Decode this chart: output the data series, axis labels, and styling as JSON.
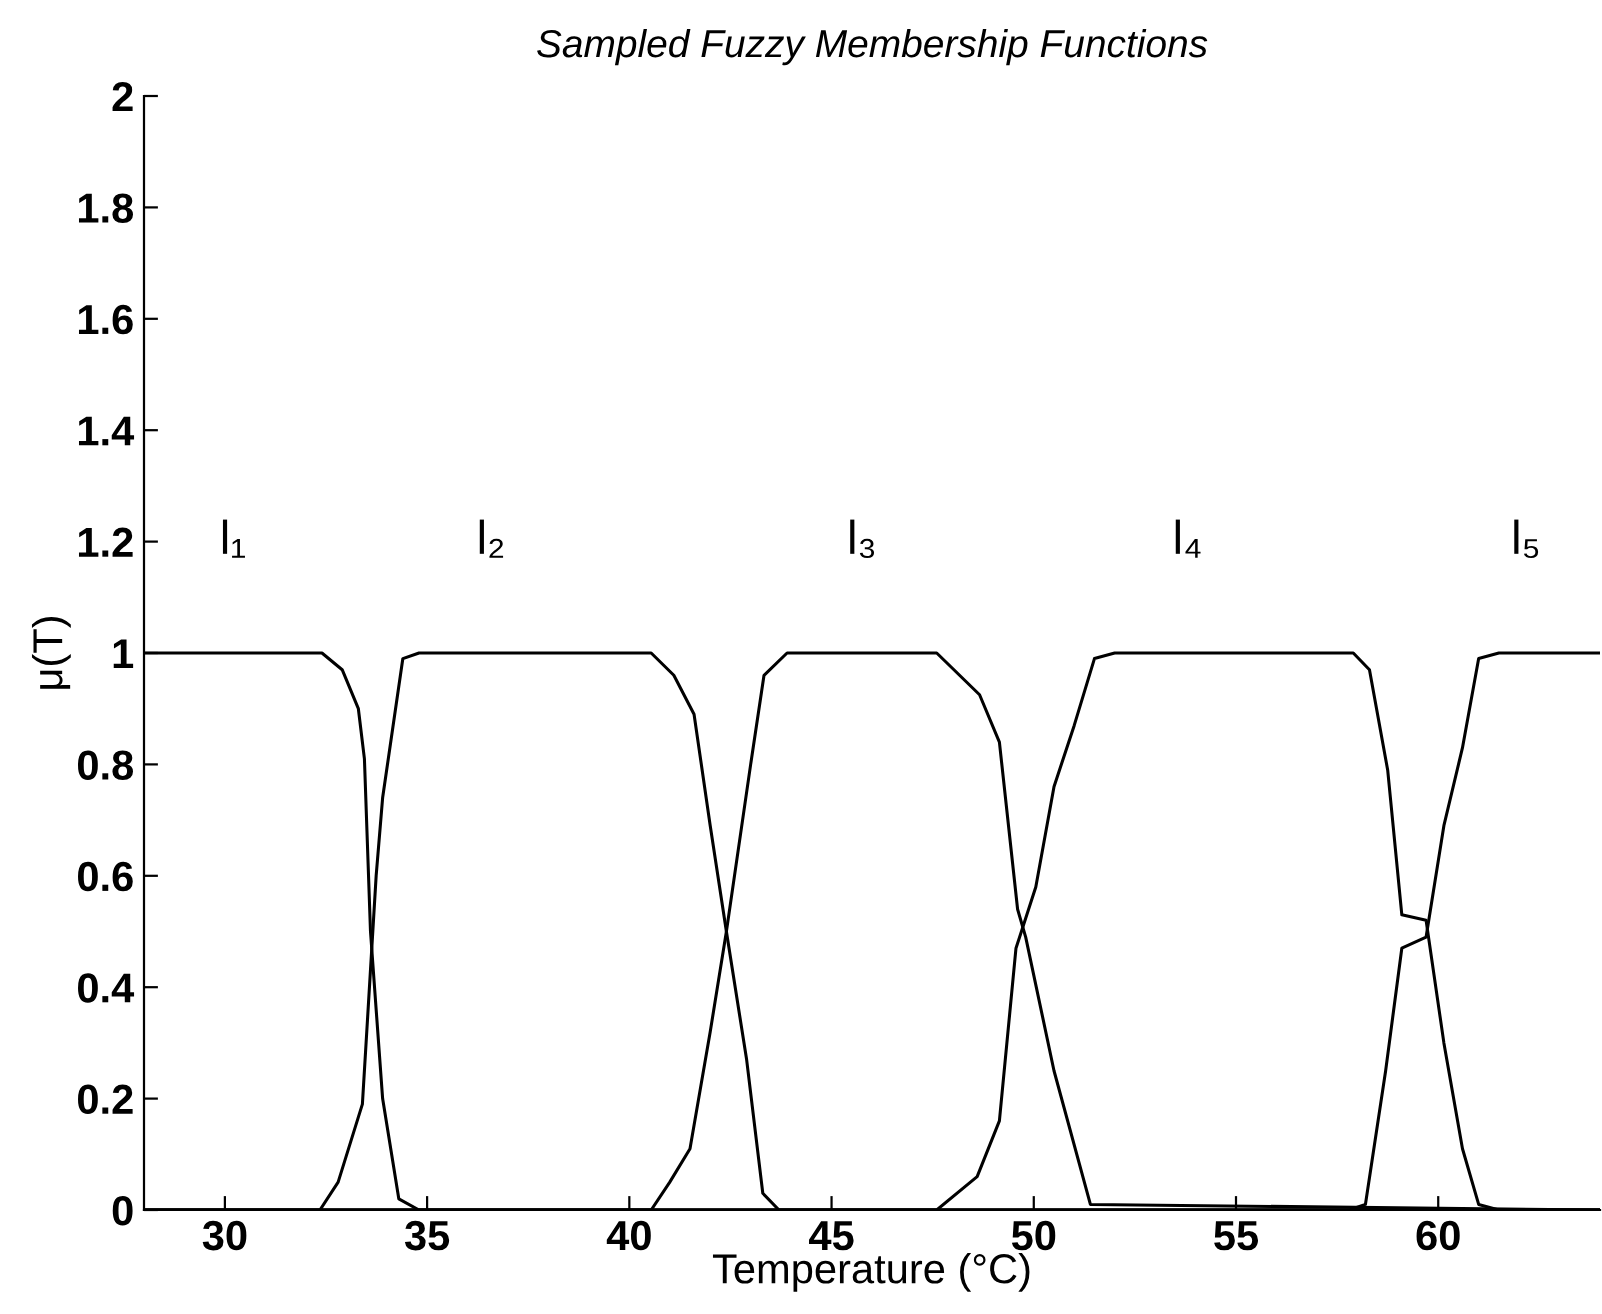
{
  "chart_data": {
    "type": "line",
    "title": "Sampled Fuzzy Membership Functions",
    "xlabel": "Temperature (°C)",
    "ylabel": "μ(T)",
    "xlim": [
      28,
      64
    ],
    "ylim": [
      0,
      2
    ],
    "xticks": [
      30,
      35,
      40,
      45,
      50,
      55,
      60
    ],
    "yticks": [
      0,
      0.2,
      0.4,
      0.6,
      0.8,
      1,
      1.2,
      1.4,
      1.6,
      1.8,
      2
    ],
    "grid": false,
    "marker": "none",
    "line_style": "solid",
    "series": [
      {
        "name": "l₁",
        "color": "#000000",
        "x": [
          28,
          32.4,
          32.9,
          33.3,
          33.45,
          33.6,
          33.9,
          34.3,
          34.8,
          64
        ],
        "values": [
          1,
          1,
          0.97,
          0.9,
          0.81,
          0.5,
          0.2,
          0.02,
          0,
          0
        ]
      },
      {
        "name": "l₂",
        "color": "#000000",
        "x": [
          28,
          32.35,
          32.8,
          33.4,
          33.74,
          33.9,
          34.4,
          34.8,
          40.54,
          41.1,
          41.6,
          42.0,
          42.4,
          42.9,
          43.3,
          43.7,
          64
        ],
        "values": [
          0,
          0,
          0.05,
          0.19,
          0.6,
          0.74,
          0.99,
          1,
          1,
          0.96,
          0.89,
          0.69,
          0.5,
          0.27,
          0.03,
          0,
          0
        ]
      },
      {
        "name": "l₃",
        "color": "#000000",
        "x": [
          28,
          40.54,
          41.0,
          41.5,
          42.0,
          42.4,
          43.0,
          43.33,
          43.9,
          47.6,
          48.66,
          49.15,
          49.6,
          49.8,
          50.5,
          51.4,
          64
        ],
        "values": [
          0,
          0,
          0.05,
          0.11,
          0.32,
          0.5,
          0.8,
          0.96,
          1,
          1,
          0.925,
          0.84,
          0.54,
          0.49,
          0.25,
          0.01,
          0
        ]
      },
      {
        "name": "l₄",
        "color": "#000000",
        "x": [
          28,
          47.6,
          48.6,
          49.15,
          49.56,
          50.05,
          50.5,
          51.0,
          51.5,
          52.0,
          57.9,
          58.3,
          58.75,
          59.1,
          59.7,
          60.14,
          60.6,
          61.0,
          61.5,
          64
        ],
        "values": [
          0,
          0,
          0.06,
          0.16,
          0.47,
          0.58,
          0.76,
          0.87,
          0.99,
          1,
          1,
          0.97,
          0.79,
          0.53,
          0.52,
          0.3,
          0.11,
          0.01,
          0,
          0
        ]
      },
      {
        "name": "l₅",
        "color": "#000000",
        "x": [
          28,
          57.8,
          58.2,
          58.7,
          59.1,
          59.7,
          60.14,
          60.6,
          61.0,
          61.5,
          64
        ],
        "values": [
          0,
          0,
          0.01,
          0.25,
          0.47,
          0.49,
          0.69,
          0.83,
          0.99,
          1,
          1
        ]
      }
    ]
  }
}
